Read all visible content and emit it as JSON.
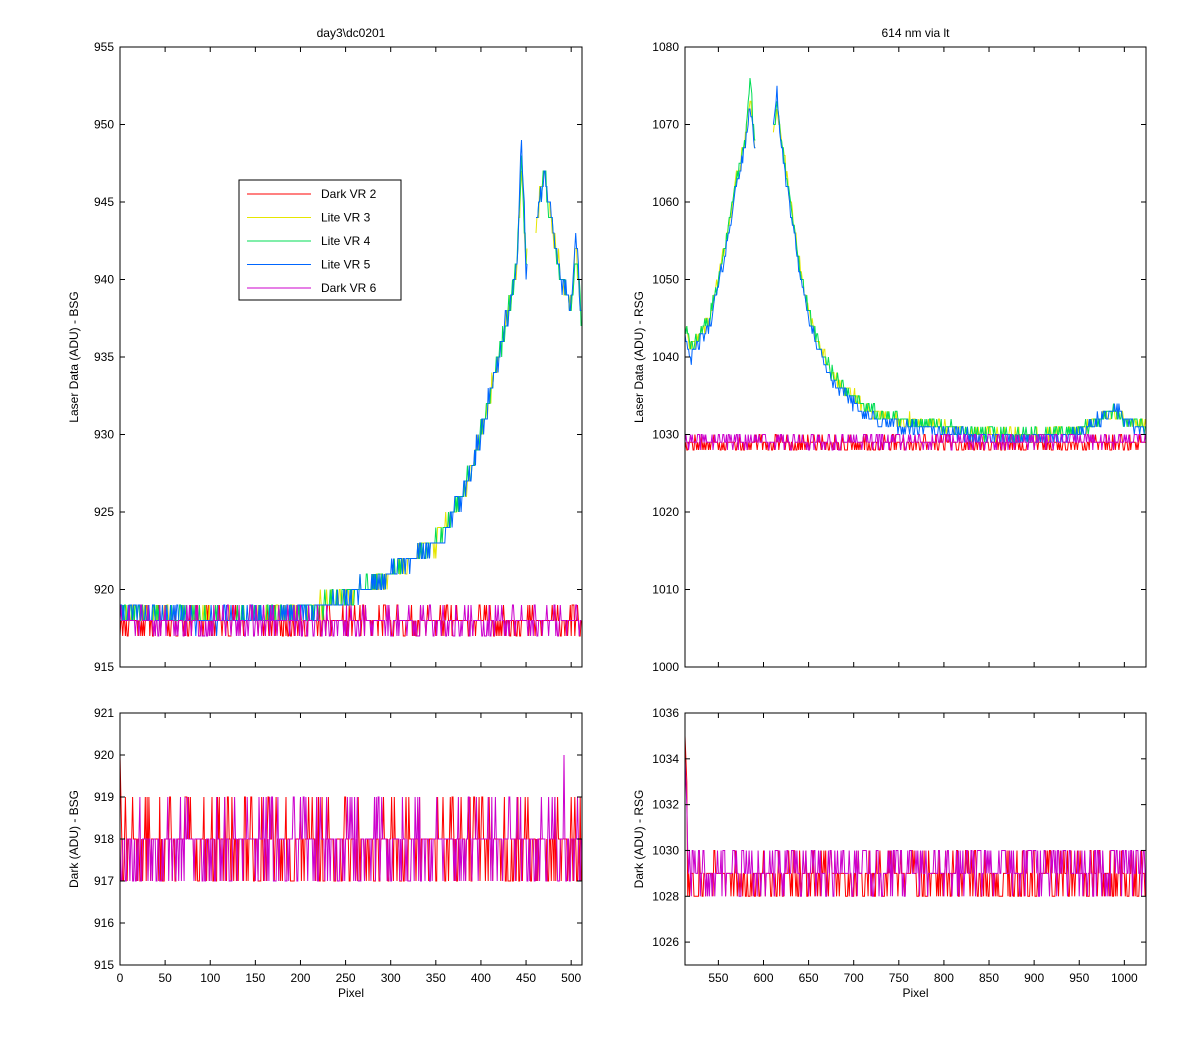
{
  "colors": {
    "background": "#ffffff",
    "axes": "#000000",
    "dark_vr2": "#ff0000",
    "lite_vr3": "#e6e600",
    "lite_vr4": "#00dd55",
    "lite_vr5": "#0066ff",
    "dark_vr6": "#cc00cc"
  },
  "chart_data": [
    {
      "id": "top-left",
      "type": "line",
      "title": "day3\\dc0201",
      "xlabel": "",
      "ylabel": "Laser Data (ADU) - BSG",
      "xlim": [
        0,
        512
      ],
      "ylim": [
        915,
        955
      ],
      "xticks": [],
      "yticks": [
        915,
        920,
        925,
        930,
        935,
        940,
        945,
        950,
        955
      ],
      "minor_x_ticks": [
        50,
        100,
        150,
        200,
        250,
        300,
        350,
        400,
        450,
        500
      ],
      "grid": false,
      "legend": {
        "placement": "upper-left-center",
        "entries": [
          "Dark VR 2",
          "Lite VR 3",
          "Lite VR 4",
          "Lite VR 5",
          "Dark VR 6"
        ]
      },
      "series": [
        {
          "name": "Dark VR 2",
          "color_key": "dark_vr2",
          "profile": "flat",
          "base": 917.9,
          "noise": 0.8,
          "seed": 11,
          "n": 512,
          "x0": 0,
          "dx": 1
        },
        {
          "name": "Lite VR 3",
          "color_key": "lite_vr3",
          "profile": "peak",
          "seed": 21,
          "n": 512,
          "x0": 0,
          "dx": 1,
          "noise": 0.6,
          "anchors": [
            [
              0,
              918.5
            ],
            [
              100,
              918
            ],
            [
              200,
              918.5
            ],
            [
              250,
              919.5
            ],
            [
              300,
              921
            ],
            [
              350,
              923
            ],
            [
              380,
              926
            ],
            [
              400,
              930
            ],
            [
              420,
              935
            ],
            [
              440,
              941
            ],
            [
              445,
              947
            ],
            [
              450,
              941
            ],
            [
              462,
              944
            ],
            [
              470,
              947
            ],
            [
              480,
              943
            ],
            [
              490,
              940
            ],
            [
              500,
              938
            ],
            [
              505,
              942
            ],
            [
              512,
              937
            ]
          ],
          "gaps": [
            [
              452,
              460
            ]
          ]
        },
        {
          "name": "Lite VR 4",
          "color_key": "lite_vr4",
          "profile": "peak",
          "seed": 31,
          "n": 512,
          "x0": 0,
          "dx": 1,
          "noise": 0.6,
          "anchors": [
            [
              0,
              918.5
            ],
            [
              100,
              918
            ],
            [
              200,
              918.5
            ],
            [
              250,
              919.5
            ],
            [
              300,
              921
            ],
            [
              350,
              923
            ],
            [
              380,
              926
            ],
            [
              400,
              930
            ],
            [
              420,
              935
            ],
            [
              440,
              941
            ],
            [
              445,
              948
            ],
            [
              450,
              941
            ],
            [
              462,
              944
            ],
            [
              470,
              947
            ],
            [
              480,
              943
            ],
            [
              490,
              940
            ],
            [
              500,
              938
            ],
            [
              505,
              942
            ],
            [
              512,
              937
            ]
          ],
          "gaps": [
            [
              452,
              460
            ]
          ]
        },
        {
          "name": "Lite VR 5",
          "color_key": "lite_vr5",
          "profile": "peak",
          "seed": 41,
          "n": 512,
          "x0": 0,
          "dx": 1,
          "noise": 0.6,
          "anchors": [
            [
              0,
              918.5
            ],
            [
              100,
              918
            ],
            [
              200,
              918.5
            ],
            [
              250,
              919.5
            ],
            [
              300,
              921
            ],
            [
              350,
              923
            ],
            [
              380,
              926
            ],
            [
              400,
              930
            ],
            [
              420,
              935
            ],
            [
              440,
              941
            ],
            [
              445,
              949
            ],
            [
              450,
              941
            ],
            [
              462,
              944
            ],
            [
              470,
              947
            ],
            [
              480,
              943
            ],
            [
              490,
              940
            ],
            [
              500,
              938
            ],
            [
              505,
              943
            ],
            [
              512,
              937
            ]
          ],
          "gaps": [
            [
              452,
              460
            ]
          ]
        },
        {
          "name": "Dark VR 6",
          "color_key": "dark_vr6",
          "profile": "flat",
          "base": 917.9,
          "noise": 0.8,
          "seed": 51,
          "n": 512,
          "x0": 0,
          "dx": 1
        }
      ]
    },
    {
      "id": "top-right",
      "type": "line",
      "title": "614 nm via lt",
      "xlabel": "",
      "ylabel": "Laser Data (ADU) - RSG",
      "xlim": [
        513,
        1024
      ],
      "ylim": [
        1000,
        1080
      ],
      "xticks": [],
      "yticks": [
        1000,
        1010,
        1020,
        1030,
        1040,
        1050,
        1060,
        1070,
        1080
      ],
      "minor_x_ticks": [
        550,
        600,
        650,
        700,
        750,
        800,
        850,
        900,
        950,
        1000
      ],
      "grid": false,
      "series": [
        {
          "name": "Dark VR 2",
          "color_key": "dark_vr2",
          "profile": "flat",
          "base": 1028.8,
          "noise": 0.9,
          "seed": 12,
          "n": 512,
          "x0": 513,
          "dx": 1
        },
        {
          "name": "Lite VR 3",
          "color_key": "lite_vr3",
          "profile": "peak",
          "seed": 22,
          "n": 512,
          "x0": 513,
          "dx": 1,
          "noise": 0.8,
          "anchors": [
            [
              513,
              1044
            ],
            [
              520,
              1041
            ],
            [
              530,
              1043
            ],
            [
              540,
              1045
            ],
            [
              550,
              1050
            ],
            [
              560,
              1056
            ],
            [
              570,
              1063
            ],
            [
              580,
              1068
            ],
            [
              585,
              1074
            ],
            [
              590,
              1068
            ],
            [
              612,
              1070
            ],
            [
              615,
              1072
            ],
            [
              620,
              1068
            ],
            [
              630,
              1060
            ],
            [
              640,
              1052
            ],
            [
              650,
              1046
            ],
            [
              660,
              1042
            ],
            [
              680,
              1037
            ],
            [
              700,
              1035
            ],
            [
              720,
              1033
            ],
            [
              750,
              1032
            ],
            [
              800,
              1031
            ],
            [
              850,
              1030
            ],
            [
              900,
              1030
            ],
            [
              950,
              1030.5
            ],
            [
              990,
              1033
            ],
            [
              1000,
              1032
            ],
            [
              1024,
              1031
            ]
          ],
          "gaps": [
            [
              592,
              610
            ]
          ]
        },
        {
          "name": "Lite VR 4",
          "color_key": "lite_vr4",
          "profile": "peak",
          "seed": 32,
          "n": 512,
          "x0": 513,
          "dx": 1,
          "noise": 0.8,
          "anchors": [
            [
              513,
              1044
            ],
            [
              520,
              1041
            ],
            [
              530,
              1043
            ],
            [
              540,
              1045
            ],
            [
              550,
              1050
            ],
            [
              560,
              1056
            ],
            [
              570,
              1063
            ],
            [
              580,
              1068
            ],
            [
              585,
              1076
            ],
            [
              590,
              1068
            ],
            [
              612,
              1070
            ],
            [
              615,
              1073
            ],
            [
              620,
              1068
            ],
            [
              630,
              1060
            ],
            [
              640,
              1052
            ],
            [
              650,
              1046
            ],
            [
              660,
              1042
            ],
            [
              680,
              1037
            ],
            [
              700,
              1035
            ],
            [
              720,
              1033
            ],
            [
              750,
              1032
            ],
            [
              800,
              1031
            ],
            [
              850,
              1030
            ],
            [
              900,
              1030
            ],
            [
              950,
              1030.5
            ],
            [
              990,
              1033
            ],
            [
              1000,
              1032
            ],
            [
              1024,
              1031
            ]
          ],
          "gaps": [
            [
              592,
              610
            ]
          ]
        },
        {
          "name": "Lite VR 5",
          "color_key": "lite_vr5",
          "profile": "peak",
          "seed": 42,
          "n": 512,
          "x0": 513,
          "dx": 1,
          "noise": 0.8,
          "anchors": [
            [
              513,
              1043
            ],
            [
              520,
              1040
            ],
            [
              530,
              1042
            ],
            [
              540,
              1044
            ],
            [
              550,
              1049
            ],
            [
              560,
              1055
            ],
            [
              570,
              1062
            ],
            [
              580,
              1067
            ],
            [
              585,
              1073
            ],
            [
              590,
              1067
            ],
            [
              612,
              1070
            ],
            [
              615,
              1074
            ],
            [
              620,
              1067
            ],
            [
              630,
              1059
            ],
            [
              640,
              1051
            ],
            [
              650,
              1045
            ],
            [
              660,
              1041
            ],
            [
              680,
              1036
            ],
            [
              700,
              1034
            ],
            [
              720,
              1032
            ],
            [
              750,
              1031
            ],
            [
              800,
              1030.5
            ],
            [
              850,
              1029.5
            ],
            [
              900,
              1029.5
            ],
            [
              950,
              1030
            ],
            [
              990,
              1033.5
            ],
            [
              1000,
              1032
            ],
            [
              1024,
              1030
            ]
          ],
          "gaps": [
            [
              592,
              610
            ]
          ]
        },
        {
          "name": "Dark VR 6",
          "color_key": "dark_vr6",
          "profile": "flat",
          "base": 1029.2,
          "noise": 0.9,
          "seed": 52,
          "n": 512,
          "x0": 513,
          "dx": 1
        }
      ]
    },
    {
      "id": "bottom-left",
      "type": "line",
      "title": "",
      "xlabel": "Pixel",
      "ylabel": "Dark (ADU) - BSG",
      "xlim": [
        0,
        512
      ],
      "ylim": [
        915,
        921
      ],
      "xticks": [
        0,
        50,
        100,
        150,
        200,
        250,
        300,
        350,
        400,
        450,
        500
      ],
      "yticks": [
        915,
        916,
        917,
        918,
        919,
        920,
        921
      ],
      "grid": false,
      "series": [
        {
          "name": "Dark VR 2",
          "color_key": "dark_vr2",
          "profile": "flat",
          "base": 917.9,
          "noise": 0.8,
          "seed": 13,
          "n": 512,
          "x0": 0,
          "dx": 1,
          "start_spike": 920
        },
        {
          "name": "Dark VR 6",
          "color_key": "dark_vr6",
          "profile": "flat",
          "base": 917.9,
          "noise": 0.8,
          "seed": 53,
          "n": 512,
          "x0": 0,
          "dx": 1,
          "spike": [
            492,
            920
          ]
        }
      ]
    },
    {
      "id": "bottom-right",
      "type": "line",
      "title": "",
      "xlabel": "Pixel",
      "ylabel": "Dark (ADU) - RSG",
      "xlim": [
        513,
        1024
      ],
      "ylim": [
        1025,
        1036
      ],
      "xticks": [
        550,
        600,
        650,
        700,
        750,
        800,
        850,
        900,
        950,
        1000
      ],
      "yticks": [
        1026,
        1028,
        1030,
        1032,
        1034,
        1036
      ],
      "grid": false,
      "series": [
        {
          "name": "Dark VR 2",
          "color_key": "dark_vr2",
          "profile": "flat",
          "base": 1028.8,
          "noise": 1.0,
          "seed": 14,
          "n": 512,
          "x0": 513,
          "dx": 1,
          "start_spike": 1035
        },
        {
          "name": "Dark VR 6",
          "color_key": "dark_vr6",
          "profile": "flat",
          "base": 1029.2,
          "noise": 1.0,
          "seed": 54,
          "n": 512,
          "x0": 513,
          "dx": 1,
          "start_spike": 1034
        }
      ]
    }
  ]
}
